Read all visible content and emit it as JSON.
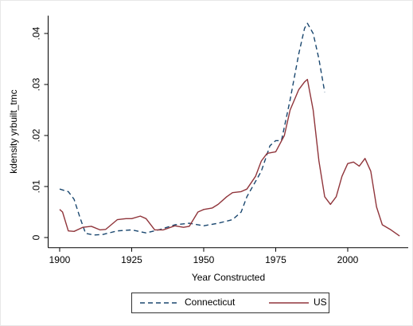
{
  "chart_data": {
    "type": "line",
    "xlabel": "Year Constructed",
    "ylabel": "kdensity yrbuilt_tmc",
    "xlim": [
      1896,
      2021
    ],
    "xticks": [
      1900,
      1925,
      1950,
      1975,
      2000
    ],
    "ylim": [
      -0.002,
      0.0435
    ],
    "yticks": [
      {
        "value": 0,
        "label": "0"
      },
      {
        "value": 0.01,
        "label": ".01"
      },
      {
        "value": 0.02,
        "label": ".02"
      },
      {
        "value": 0.03,
        "label": ".03"
      },
      {
        "value": 0.04,
        "label": ".04"
      }
    ],
    "grid": false,
    "legend": "bottom",
    "series": [
      {
        "name": "Connecticut",
        "color": "#1a476f",
        "dash": true,
        "x": [
          1900,
          1903,
          1905,
          1907,
          1909,
          1912,
          1915,
          1920,
          1925,
          1930,
          1935,
          1940,
          1945,
          1950,
          1955,
          1960,
          1963,
          1965,
          1970,
          1973,
          1975,
          1977,
          1980,
          1983,
          1985,
          1986,
          1988,
          1990,
          1992
        ],
        "values": [
          0.0095,
          0.009,
          0.0075,
          0.004,
          0.0008,
          0.0005,
          0.0006,
          0.0013,
          0.0015,
          0.0009,
          0.0016,
          0.0025,
          0.0028,
          0.0023,
          0.0028,
          0.0035,
          0.005,
          0.008,
          0.013,
          0.018,
          0.019,
          0.019,
          0.027,
          0.036,
          0.041,
          0.042,
          0.04,
          0.035,
          0.0285
        ]
      },
      {
        "name": "US",
        "color": "#90353b",
        "dash": false,
        "x": [
          1900,
          1901,
          1903,
          1905,
          1908,
          1911,
          1914,
          1916,
          1920,
          1923,
          1925,
          1928,
          1930,
          1933,
          1936,
          1940,
          1943,
          1945,
          1948,
          1950,
          1953,
          1955,
          1958,
          1960,
          1963,
          1965,
          1968,
          1970,
          1972,
          1975,
          1978,
          1980,
          1983,
          1985,
          1986,
          1988,
          1990,
          1992,
          1994,
          1996,
          1998,
          2000,
          2002,
          2004,
          2006,
          2008,
          2010,
          2012,
          2015,
          2018
        ],
        "values": [
          0.0055,
          0.005,
          0.0013,
          0.0012,
          0.002,
          0.0022,
          0.0015,
          0.0016,
          0.0035,
          0.0037,
          0.0037,
          0.0042,
          0.0037,
          0.0015,
          0.0015,
          0.0023,
          0.002,
          0.0022,
          0.005,
          0.0055,
          0.0058,
          0.0065,
          0.008,
          0.0088,
          0.009,
          0.0095,
          0.012,
          0.015,
          0.0165,
          0.0168,
          0.02,
          0.025,
          0.029,
          0.0305,
          0.031,
          0.025,
          0.015,
          0.008,
          0.0065,
          0.008,
          0.012,
          0.0145,
          0.0148,
          0.014,
          0.0155,
          0.013,
          0.006,
          0.0025,
          0.0015,
          0.0003
        ]
      }
    ]
  }
}
